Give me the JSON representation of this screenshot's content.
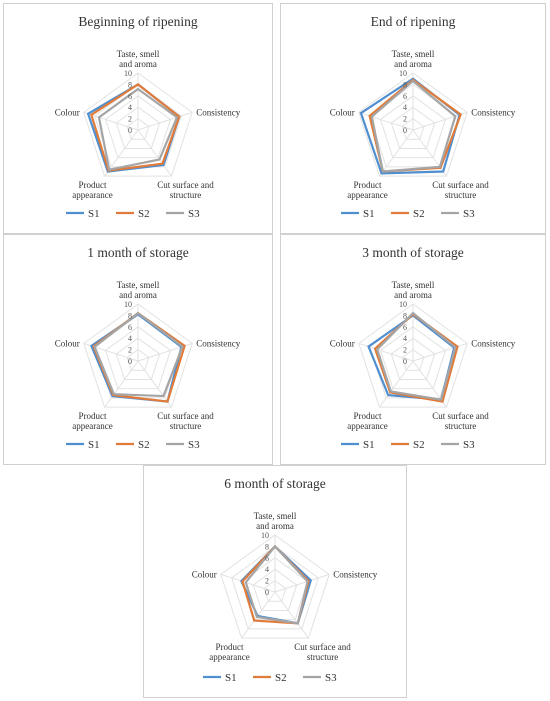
{
  "chart_data": [
    {
      "type": "radar",
      "title": "Beginning of ripening",
      "axes": [
        "Taste, smell and aroma",
        "Consistency",
        "Cut surface and structure",
        "Product appearance",
        "Colour"
      ],
      "rlim": [
        0,
        10
      ],
      "ticks": [
        0,
        2,
        4,
        6,
        8,
        10
      ],
      "legend": "bottom",
      "series": [
        {
          "name": "S1",
          "values": [
            8.0,
            7.6,
            7.6,
            9.0,
            9.2
          ]
        },
        {
          "name": "S2",
          "values": [
            8.0,
            7.6,
            7.3,
            8.8,
            8.6
          ]
        },
        {
          "name": "S3",
          "values": [
            7.2,
            7.2,
            6.4,
            8.6,
            7.2
          ]
        }
      ]
    },
    {
      "type": "radar",
      "title": "End of ripening",
      "axes": [
        "Taste, smell and aroma",
        "Consistency",
        "Cut surface and structure",
        "Product appearance",
        "Colour"
      ],
      "rlim": [
        0,
        10
      ],
      "ticks": [
        0,
        2,
        4,
        6,
        8,
        10
      ],
      "legend": "bottom",
      "series": [
        {
          "name": "S1",
          "values": [
            9.0,
            8.6,
            9.0,
            9.4,
            9.6
          ]
        },
        {
          "name": "S2",
          "values": [
            8.8,
            8.8,
            8.2,
            9.0,
            8.0
          ]
        },
        {
          "name": "S3",
          "values": [
            8.6,
            7.8,
            8.0,
            9.0,
            7.6
          ]
        }
      ]
    },
    {
      "type": "radar",
      "title": "1 month of storage",
      "axes": [
        "Taste, smell and aroma",
        "Consistency",
        "Cut surface and structure",
        "Product appearance",
        "Colour"
      ],
      "rlim": [
        0,
        10
      ],
      "ticks": [
        0,
        2,
        4,
        6,
        8,
        10
      ],
      "legend": "bottom",
      "series": [
        {
          "name": "S1",
          "values": [
            8.2,
            8.0,
            8.8,
            7.6,
            8.6
          ]
        },
        {
          "name": "S2",
          "values": [
            8.4,
            8.6,
            8.8,
            7.4,
            8.2
          ]
        },
        {
          "name": "S3",
          "values": [
            8.4,
            8.2,
            7.6,
            7.2,
            8.0
          ]
        }
      ]
    },
    {
      "type": "radar",
      "title": "3 month of storage",
      "axes": [
        "Taste, smell and aroma",
        "Consistency",
        "Cut surface and structure",
        "Product appearance",
        "Colour"
      ],
      "rlim": [
        0,
        10
      ],
      "ticks": [
        0,
        2,
        4,
        6,
        8,
        10
      ],
      "legend": "bottom",
      "series": [
        {
          "name": "S1",
          "values": [
            8.0,
            7.6,
            8.4,
            7.4,
            8.2
          ]
        },
        {
          "name": "S2",
          "values": [
            8.2,
            8.2,
            8.8,
            6.8,
            7.0
          ]
        },
        {
          "name": "S3",
          "values": [
            8.4,
            7.8,
            8.4,
            6.6,
            6.6
          ]
        }
      ]
    },
    {
      "type": "radar",
      "title": "6 month of storage",
      "axes": [
        "Taste, smell and aroma",
        "Consistency",
        "Cut surface and structure",
        "Product appearance",
        "Colour"
      ],
      "rlim": [
        0,
        10
      ],
      "ticks": [
        0,
        2,
        4,
        6,
        8,
        10
      ],
      "legend": "bottom",
      "series": [
        {
          "name": "S1",
          "values": [
            8.0,
            6.6,
            6.8,
            5.2,
            6.2
          ]
        },
        {
          "name": "S2",
          "values": [
            8.0,
            6.2,
            6.8,
            6.2,
            6.0
          ]
        },
        {
          "name": "S3",
          "values": [
            8.0,
            6.0,
            6.8,
            5.4,
            5.4
          ]
        }
      ]
    }
  ],
  "colors": {
    "S1": "#4f8fd0",
    "S2": "#e07b39",
    "S3": "#a5a5a5",
    "grid": "#e2e2e2"
  }
}
